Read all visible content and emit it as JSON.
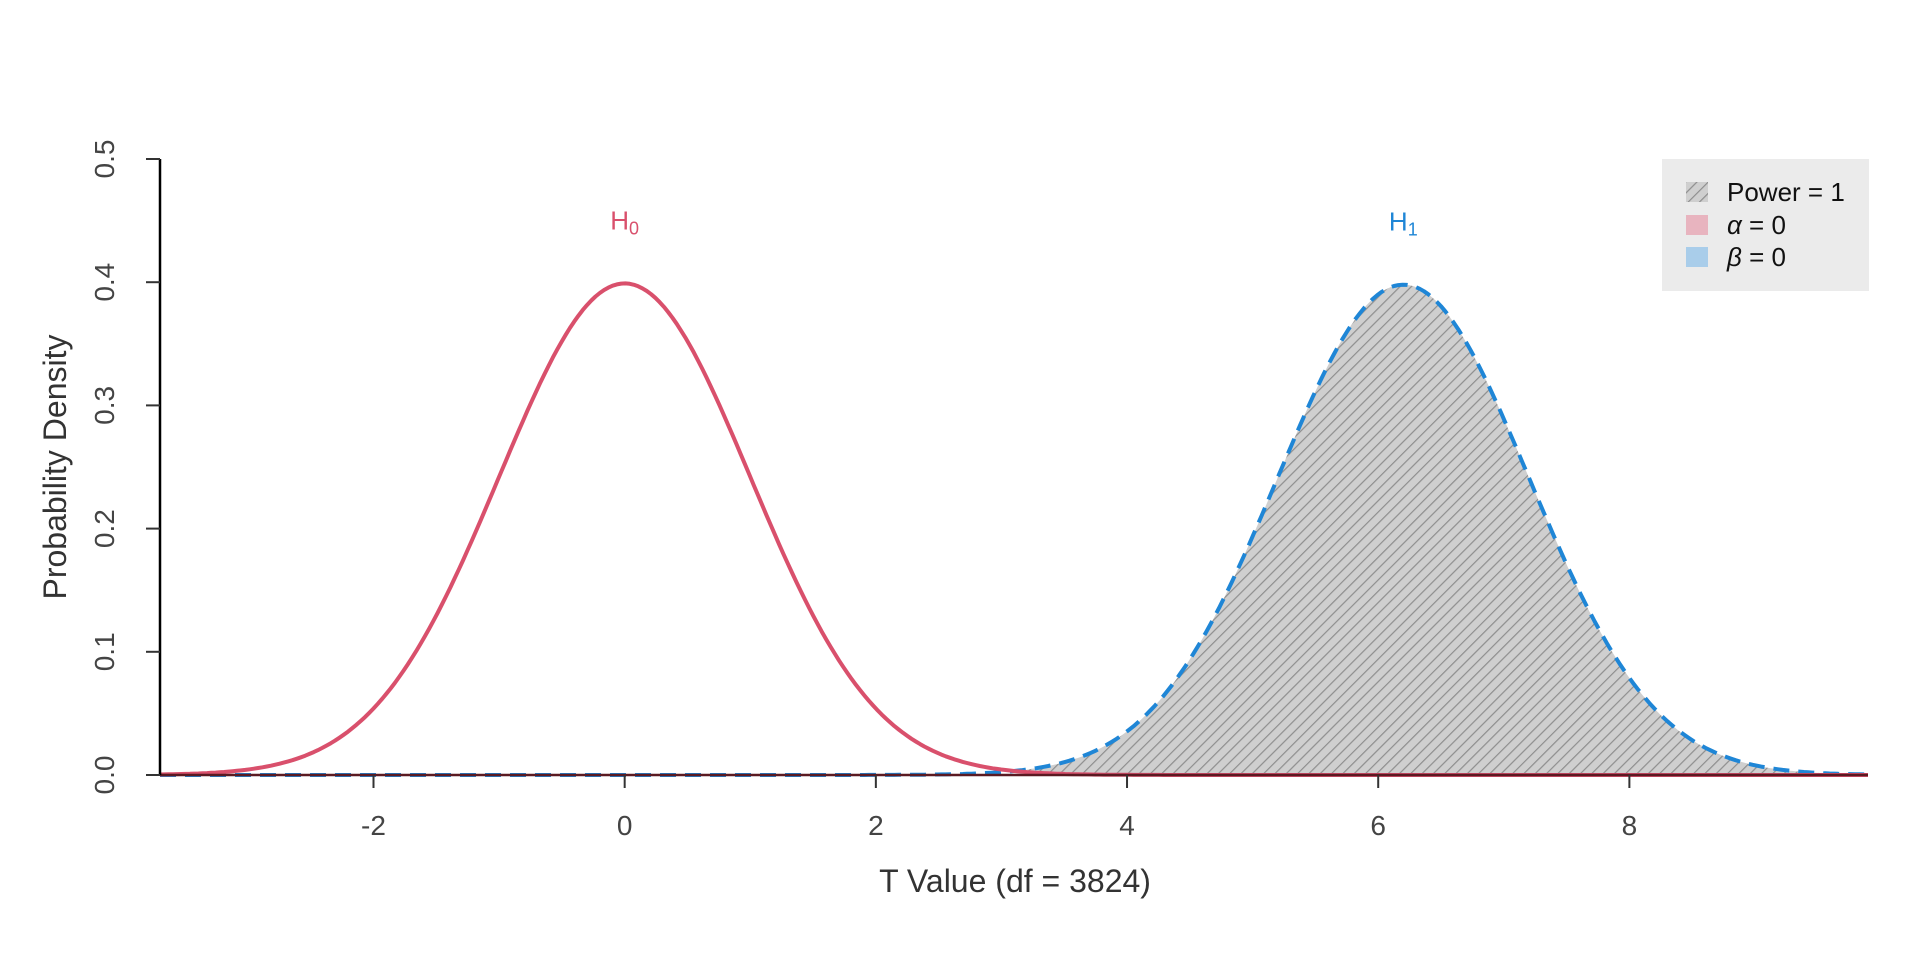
{
  "chart_data": {
    "type": "line",
    "xlabel": "T Value (df = 3824)",
    "ylabel": "Probability Density",
    "xlim": [
      -3.7,
      9.9
    ],
    "ylim": [
      0,
      0.5
    ],
    "x_ticks": [
      -2,
      0,
      2,
      4,
      6,
      8
    ],
    "x_tick_labels": [
      "-2",
      "0",
      "2",
      "4",
      "6",
      "8"
    ],
    "y_ticks": [
      0,
      0.1,
      0.2,
      0.3,
      0.4,
      0.5
    ],
    "y_tick_labels": [
      "0.0",
      "0.1",
      "0.2",
      "0.3",
      "0.4",
      "0.5"
    ],
    "grid": false,
    "legend_position": "top-right",
    "series": [
      {
        "key": "h0",
        "label_main": "H",
        "label_sub": "0",
        "center": 0,
        "peak": 0.399,
        "color": "#d9506c",
        "dash": "solid"
      },
      {
        "key": "h1",
        "label_main": "H",
        "label_sub": "1",
        "center": 6.2,
        "peak": 0.398,
        "color": "#1f86d6",
        "dash": "dashed"
      }
    ],
    "critical_value": 3.2,
    "shaded_regions": [
      {
        "name": "power",
        "under": "h1",
        "from": 3.2,
        "to": 9.9,
        "fill": "hatch"
      }
    ],
    "legend": [
      {
        "symbol": "",
        "text": "Power = 1",
        "fill": "hatch"
      },
      {
        "symbol": "α",
        "text": "= 0",
        "fill": "#e8b4bf"
      },
      {
        "symbol": "β",
        "text": "= 0",
        "fill": "#a9cdea"
      }
    ]
  }
}
